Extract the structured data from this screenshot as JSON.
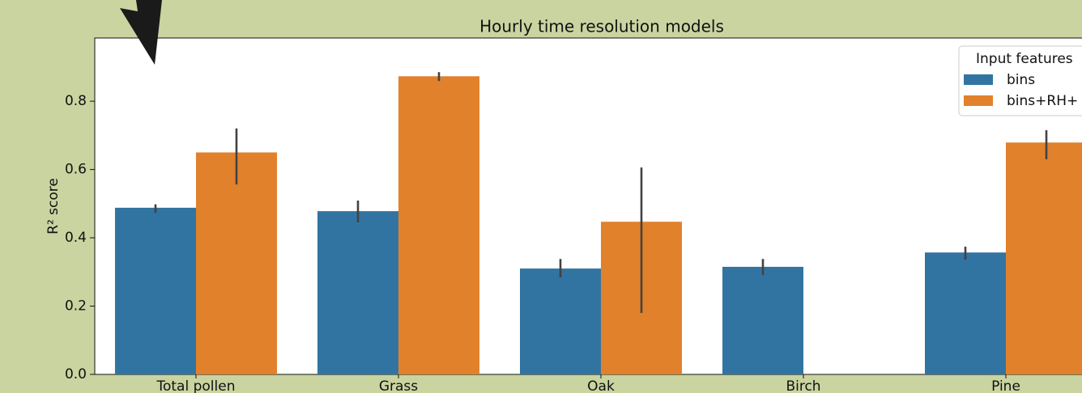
{
  "chart_data": {
    "type": "bar",
    "title": "Hourly time resolution models",
    "y_label": "R² score",
    "categories": [
      "Total pollen",
      "Grass",
      "Oak",
      "Birch",
      "Pine"
    ],
    "legend_title": "Input features",
    "series": [
      {
        "name": "bins",
        "color": "#3274a1",
        "values": [
          0.488,
          0.478,
          0.31,
          0.315,
          0.357
        ],
        "error_low": [
          0.473,
          0.445,
          0.284,
          0.291,
          0.336
        ],
        "error_high": [
          0.498,
          0.509,
          0.338,
          0.338,
          0.374
        ]
      },
      {
        "name": "bins+RH+",
        "color": "#e1812c",
        "values": [
          0.65,
          0.873,
          0.447,
          null,
          0.679
        ],
        "error_low": [
          0.556,
          0.859,
          0.18,
          null,
          0.63
        ],
        "error_high": [
          0.72,
          0.885,
          0.606,
          null,
          0.715
        ]
      }
    ],
    "ylim": [
      0,
      0.985
    ],
    "yticks": [
      {
        "value": 0,
        "label": "0.0"
      },
      0.2,
      0.4,
      0.6,
      0.8
    ]
  }
}
